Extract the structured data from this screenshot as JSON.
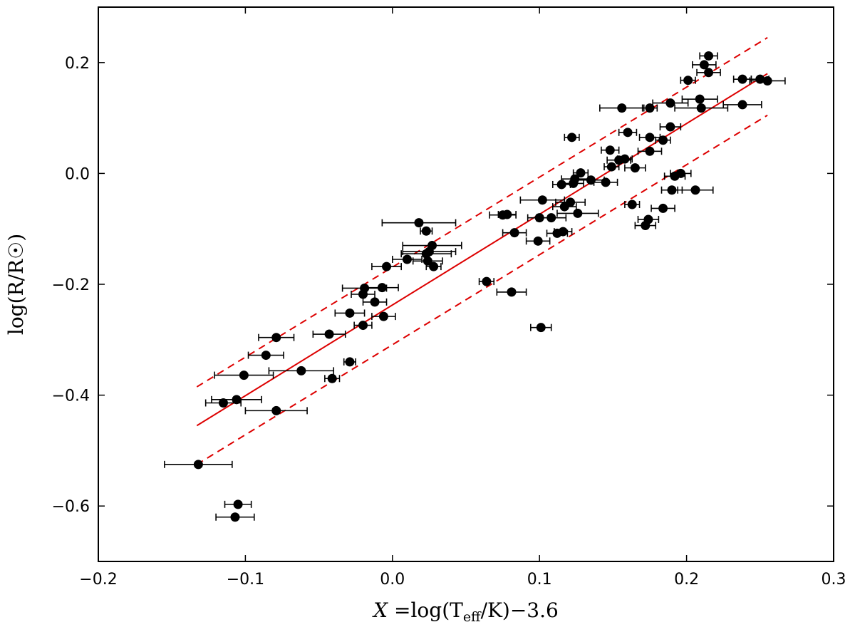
{
  "chart_data": {
    "type": "scatter",
    "xlabel": "X =log(T_eff/K)−3.6",
    "xlabel_parts": {
      "pre": "X",
      "eq": " =log(T",
      "sub": "eff",
      "post": "/K)−3.6"
    },
    "ylabel": "log(R/R☉)",
    "xlim": [
      -0.2,
      0.3
    ],
    "ylim": [
      -0.7,
      0.3
    ],
    "xticks": [
      -0.2,
      -0.1,
      0.0,
      0.1,
      0.2,
      0.3
    ],
    "xtick_labels": [
      "−0.2",
      "−0.1",
      "0.0",
      "0.1",
      "0.2",
      "0.3"
    ],
    "yticks": [
      -0.6,
      -0.4,
      -0.2,
      0.0,
      0.2
    ],
    "ytick_labels": [
      "−0.6",
      "−0.4",
      "−0.2",
      "0.0",
      "0.2"
    ],
    "grid": false,
    "colors": {
      "points": "#000000",
      "fit": "#dd0000"
    },
    "fit_line": {
      "x": [
        -0.133,
        0.255
      ],
      "y": [
        -0.455,
        0.18
      ]
    },
    "bound_lines": [
      {
        "name": "upper",
        "x": [
          -0.133,
          0.255
        ],
        "y": [
          -0.385,
          0.245
        ]
      },
      {
        "name": "lower",
        "x": [
          -0.133,
          0.255
        ],
        "y": [
          -0.525,
          0.105
        ]
      }
    ],
    "points": [
      {
        "x": 0.215,
        "y": 0.212,
        "xerr": 0.006
      },
      {
        "x": 0.212,
        "y": 0.196,
        "xerr": 0.008
      },
      {
        "x": 0.215,
        "y": 0.182,
        "xerr": 0.008
      },
      {
        "x": 0.201,
        "y": 0.168,
        "xerr": 0.005
      },
      {
        "x": 0.238,
        "y": 0.17,
        "xerr": 0.006
      },
      {
        "x": 0.25,
        "y": 0.17,
        "xerr": 0.006
      },
      {
        "x": 0.255,
        "y": 0.167,
        "xerr": 0.012
      },
      {
        "x": 0.156,
        "y": 0.118,
        "xerr": 0.015
      },
      {
        "x": 0.175,
        "y": 0.118,
        "xerr": 0.005
      },
      {
        "x": 0.189,
        "y": 0.127,
        "xerr": 0.012
      },
      {
        "x": 0.209,
        "y": 0.134,
        "xerr": 0.012
      },
      {
        "x": 0.21,
        "y": 0.118,
        "xerr": 0.018
      },
      {
        "x": 0.238,
        "y": 0.124,
        "xerr": 0.013
      },
      {
        "x": 0.122,
        "y": 0.065,
        "xerr": 0.005
      },
      {
        "x": 0.16,
        "y": 0.074,
        "xerr": 0.006
      },
      {
        "x": 0.175,
        "y": 0.065,
        "xerr": 0.007
      },
      {
        "x": 0.189,
        "y": 0.084,
        "xerr": 0.007
      },
      {
        "x": 0.184,
        "y": 0.06,
        "xerr": 0.005
      },
      {
        "x": 0.148,
        "y": 0.042,
        "xerr": 0.006
      },
      {
        "x": 0.175,
        "y": 0.04,
        "xerr": 0.008
      },
      {
        "x": 0.154,
        "y": 0.024,
        "xerr": 0.008
      },
      {
        "x": 0.158,
        "y": 0.026,
        "xerr": 0.005
      },
      {
        "x": 0.149,
        "y": 0.012,
        "xerr": 0.005
      },
      {
        "x": 0.165,
        "y": 0.01,
        "xerr": 0.007
      },
      {
        "x": 0.128,
        "y": 0.001,
        "xerr": 0.005
      },
      {
        "x": 0.124,
        "y": -0.01,
        "xerr": 0.009
      },
      {
        "x": 0.135,
        "y": -0.012,
        "xerr": 0.009
      },
      {
        "x": 0.145,
        "y": -0.016,
        "xerr": 0.008
      },
      {
        "x": 0.115,
        "y": -0.02,
        "xerr": 0.006
      },
      {
        "x": 0.123,
        "y": -0.018,
        "xerr": 0.007
      },
      {
        "x": 0.196,
        "y": 0.0,
        "xerr": 0.007
      },
      {
        "x": 0.192,
        "y": -0.005,
        "xerr": 0.007
      },
      {
        "x": 0.19,
        "y": -0.03,
        "xerr": 0.007
      },
      {
        "x": 0.206,
        "y": -0.03,
        "xerr": 0.012
      },
      {
        "x": 0.102,
        "y": -0.048,
        "xerr": 0.015
      },
      {
        "x": 0.117,
        "y": -0.06,
        "xerr": 0.008
      },
      {
        "x": 0.121,
        "y": -0.052,
        "xerr": 0.01
      },
      {
        "x": 0.163,
        "y": -0.056,
        "xerr": 0.005
      },
      {
        "x": 0.184,
        "y": -0.063,
        "xerr": 0.008
      },
      {
        "x": 0.075,
        "y": -0.075,
        "xerr": 0.009
      },
      {
        "x": 0.078,
        "y": -0.074,
        "xerr": 0.006
      },
      {
        "x": 0.1,
        "y": -0.08,
        "xerr": 0.008
      },
      {
        "x": 0.108,
        "y": -0.08,
        "xerr": 0.01
      },
      {
        "x": 0.126,
        "y": -0.072,
        "xerr": 0.014
      },
      {
        "x": 0.174,
        "y": -0.083,
        "xerr": 0.007
      },
      {
        "x": 0.172,
        "y": -0.094,
        "xerr": 0.007
      },
      {
        "x": 0.083,
        "y": -0.107,
        "xerr": 0.008
      },
      {
        "x": 0.112,
        "y": -0.108,
        "xerr": 0.007
      },
      {
        "x": 0.116,
        "y": -0.105,
        "xerr": 0.006
      },
      {
        "x": 0.099,
        "y": -0.122,
        "xerr": 0.008
      },
      {
        "x": 0.018,
        "y": -0.089,
        "xerr": 0.025
      },
      {
        "x": 0.023,
        "y": -0.104,
        "xerr": 0.004
      },
      {
        "x": 0.027,
        "y": -0.13,
        "xerr": 0.02
      },
      {
        "x": 0.025,
        "y": -0.141,
        "xerr": 0.018
      },
      {
        "x": 0.023,
        "y": -0.145,
        "xerr": 0.017
      },
      {
        "x": 0.01,
        "y": -0.155,
        "xerr": 0.01
      },
      {
        "x": 0.024,
        "y": -0.158,
        "xerr": 0.01
      },
      {
        "x": 0.028,
        "y": -0.168,
        "xerr": 0.005
      },
      {
        "x": -0.004,
        "y": -0.168,
        "xerr": 0.01
      },
      {
        "x": 0.064,
        "y": -0.195,
        "xerr": 0.005
      },
      {
        "x": 0.081,
        "y": -0.214,
        "xerr": 0.01
      },
      {
        "x": -0.007,
        "y": -0.206,
        "xerr": 0.011
      },
      {
        "x": -0.019,
        "y": -0.207,
        "xerr": 0.015
      },
      {
        "x": -0.02,
        "y": -0.218,
        "xerr": 0.008
      },
      {
        "x": -0.012,
        "y": -0.232,
        "xerr": 0.008
      },
      {
        "x": -0.029,
        "y": -0.252,
        "xerr": 0.01
      },
      {
        "x": -0.006,
        "y": -0.258,
        "xerr": 0.008
      },
      {
        "x": -0.02,
        "y": -0.274,
        "xerr": 0.006
      },
      {
        "x": 0.101,
        "y": -0.278,
        "xerr": 0.007
      },
      {
        "x": -0.043,
        "y": -0.29,
        "xerr": 0.011
      },
      {
        "x": -0.079,
        "y": -0.296,
        "xerr": 0.012
      },
      {
        "x": -0.086,
        "y": -0.328,
        "xerr": 0.012
      },
      {
        "x": -0.029,
        "y": -0.34,
        "xerr": 0.004
      },
      {
        "x": -0.062,
        "y": -0.356,
        "xerr": 0.022
      },
      {
        "x": -0.101,
        "y": -0.364,
        "xerr": 0.02
      },
      {
        "x": -0.041,
        "y": -0.37,
        "xerr": 0.005
      },
      {
        "x": -0.106,
        "y": -0.408,
        "xerr": 0.017
      },
      {
        "x": -0.115,
        "y": -0.414,
        "xerr": 0.012
      },
      {
        "x": -0.079,
        "y": -0.428,
        "xerr": 0.021
      },
      {
        "x": -0.132,
        "y": -0.525,
        "xerr": 0.023
      },
      {
        "x": -0.105,
        "y": -0.597,
        "xerr": 0.009
      },
      {
        "x": -0.107,
        "y": -0.62,
        "xerr": 0.013
      }
    ]
  }
}
